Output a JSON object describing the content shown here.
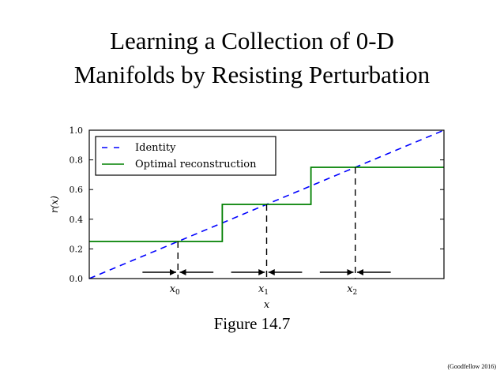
{
  "slide": {
    "title_line1": "Learning a Collection of 0-D",
    "title_line2": "Manifolds by Resisting Perturbation",
    "caption": "Figure 14.7",
    "credit": "(Goodfellow 2016)"
  },
  "chart_data": {
    "type": "line",
    "xlabel": "x",
    "ylabel": "r(x)",
    "xlim": [
      0,
      1
    ],
    "ylim": [
      0,
      1
    ],
    "yticks": [
      0.0,
      0.2,
      0.4,
      0.6,
      0.8,
      1.0
    ],
    "ytick_labels": [
      "0.0",
      "0.2",
      "0.4",
      "0.6",
      "0.8",
      "1.0"
    ],
    "grid": false,
    "legend_position": "top-left",
    "series": [
      {
        "name": "Identity",
        "style": "dashed",
        "color": "#0000ff",
        "x": [
          0,
          1
        ],
        "y": [
          0,
          1
        ]
      },
      {
        "name": "Optimal reconstruction",
        "style": "step",
        "color": "#008000",
        "x": [
          0,
          0.375,
          0.375,
          0.625,
          0.625,
          1
        ],
        "y": [
          0.25,
          0.25,
          0.5,
          0.5,
          0.75,
          0.75
        ]
      }
    ],
    "points": [
      {
        "label": "x",
        "sub": "0",
        "x": 0.25,
        "y": 0.25
      },
      {
        "label": "x",
        "sub": "1",
        "x": 0.5,
        "y": 0.5
      },
      {
        "label": "x",
        "sub": "2",
        "x": 0.75,
        "y": 0.75
      }
    ],
    "arrows": [
      {
        "from": 0.15,
        "to": 0.245
      },
      {
        "from": 0.35,
        "to": 0.255
      },
      {
        "from": 0.4,
        "to": 0.495
      },
      {
        "from": 0.6,
        "to": 0.505
      },
      {
        "from": 0.65,
        "to": 0.745
      },
      {
        "from": 0.85,
        "to": 0.755
      }
    ]
  }
}
